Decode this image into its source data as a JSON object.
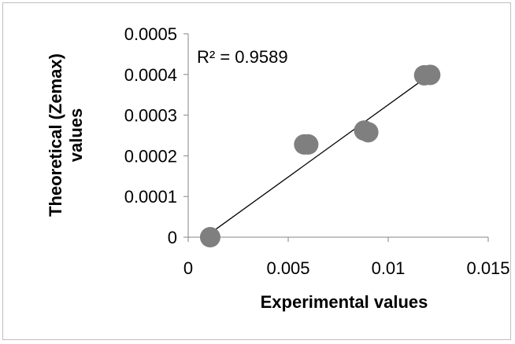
{
  "chart_data": {
    "type": "scatter",
    "title": "",
    "xlabel": "Experimental values",
    "ylabel_line1": "Theoretical (Zemax)",
    "ylabel_line2": "values",
    "xlim": [
      0,
      0.015
    ],
    "ylim": [
      0,
      0.0005
    ],
    "x_ticks": [
      0,
      0.005,
      0.01,
      0.015
    ],
    "x_tick_labels": [
      "0",
      "0.005",
      "0.01",
      "0.015"
    ],
    "y_ticks": [
      0,
      0.0001,
      0.0002,
      0.0003,
      0.0004,
      0.0005
    ],
    "y_tick_labels": [
      "0",
      "0.0001",
      "0.0002",
      "0.0003",
      "0.0004",
      "0.0005"
    ],
    "grid": false,
    "legend": "none",
    "annotation": "R² = 0.9589",
    "marker_color": "#7f7f7f",
    "trendline_color": "#000000",
    "series": [
      {
        "points": [
          {
            "x": 0.0011,
            "y": 0.0
          },
          {
            "x": 0.0058,
            "y": 0.000228
          },
          {
            "x": 0.006,
            "y": 0.000228
          },
          {
            "x": 0.0088,
            "y": 0.000262
          },
          {
            "x": 0.009,
            "y": 0.000258
          },
          {
            "x": 0.0118,
            "y": 0.000398
          },
          {
            "x": 0.0121,
            "y": 0.000399
          }
        ]
      }
    ],
    "trendline": {
      "x_start": 0.0011,
      "y_start": 9.5e-06,
      "x_end": 0.0121,
      "y_end": 0.0004
    }
  }
}
